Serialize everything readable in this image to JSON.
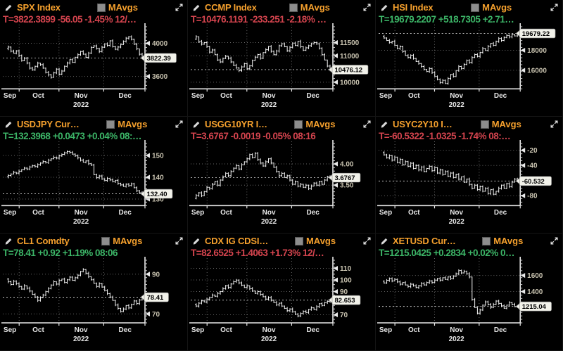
{
  "shared": {
    "mavgs_label": "MAvgs",
    "x_months": [
      "Sep",
      "Oct",
      "Nov",
      "Dec"
    ],
    "year": "2022"
  },
  "colors": {
    "positive_green": "#3cb567",
    "negative_red": "#d4444e",
    "title_orange": "#f5a02d",
    "tag_background": "#f2f2ea",
    "axis_white": "#e8e8e8",
    "tick_label_tan": "#c9c3b0",
    "chart_bar_white": "#f4f4f4"
  },
  "panels": [
    {
      "security": "SPX Index",
      "quote_line": "T=3822.3899 -56.05 -1.45% 12/…",
      "quote_color": "negative",
      "last_label": "3822.39",
      "last_value": 3822.39,
      "y_range": [
        3450,
        4200
      ],
      "y_ticks": [
        {
          "value": 4000,
          "label": "4000"
        },
        {
          "value": 3600,
          "label": "3600"
        }
      ],
      "chart": {
        "type": "ohlc-bar",
        "closes": [
          3935,
          3955,
          3905,
          3880,
          3908,
          3852,
          3790,
          3820,
          3762,
          3700,
          3678,
          3722,
          3760,
          3742,
          3700,
          3648,
          3618,
          3588,
          3642,
          3688,
          3628,
          3665,
          3722,
          3762,
          3802,
          3770,
          3832,
          3862,
          3900,
          3868,
          3830,
          3882,
          3950,
          3968,
          3938,
          3900,
          3952,
          3992,
          3975,
          4030,
          3958,
          3928,
          3955,
          3985,
          4022,
          4062,
          4078,
          4048,
          3988,
          3932,
          3868,
          3822
        ]
      }
    },
    {
      "security": "CCMP Index",
      "quote_line": "T=10476.1191 -233.251 -2.18% …",
      "quote_color": "negative",
      "last_label": "10476.12",
      "last_value": 10476.12,
      "y_range": [
        9750,
        12100
      ],
      "y_ticks": [
        {
          "value": 11500,
          "label": "11500"
        },
        {
          "value": 11000,
          "label": "11000"
        },
        {
          "value": 10000,
          "label": "10000"
        }
      ],
      "chart": {
        "type": "ohlc-bar",
        "closes": [
          11630,
          11720,
          11540,
          11440,
          11500,
          11340,
          11140,
          11220,
          11040,
          10840,
          10770,
          10900,
          10980,
          10910,
          10770,
          10640,
          10540,
          10440,
          10580,
          10700,
          10510,
          10620,
          10820,
          10950,
          11050,
          10910,
          11120,
          11230,
          11350,
          11170,
          11040,
          11180,
          11380,
          11450,
          11340,
          11190,
          11320,
          11480,
          11390,
          11550,
          11340,
          11210,
          11300,
          11380,
          11450,
          11500,
          11450,
          11290,
          11040,
          10840,
          10610,
          10476
        ]
      }
    },
    {
      "security": "HSI Index",
      "quote_line": "T=19679.2207 +518.7305 +2.71…",
      "quote_color": "positive",
      "last_label": "19679.22",
      "last_value": 19679.22,
      "y_range": [
        14150,
        20350
      ],
      "y_ticks": [
        {
          "value": 18000,
          "label": "18000"
        },
        {
          "value": 16000,
          "label": "16000"
        }
      ],
      "chart": {
        "type": "ohlc-bar",
        "closes": [
          19380,
          19230,
          18980,
          18780,
          18900,
          18480,
          18180,
          18350,
          17880,
          17480,
          17280,
          17500,
          17180,
          16880,
          16680,
          16380,
          16080,
          15880,
          16180,
          15780,
          15380,
          15080,
          14780,
          15000,
          14680,
          15180,
          15580,
          15380,
          15980,
          16380,
          16180,
          16580,
          16980,
          16780,
          17280,
          17580,
          17380,
          17780,
          18180,
          17980,
          18380,
          18680,
          18480,
          18880,
          19180,
          18980,
          19280,
          19480,
          19330,
          19540,
          19430,
          19679
        ]
      }
    },
    {
      "security": "USDJPY Cur…",
      "quote_line": "T=132.3968 +0.0473 +0.04% 08:…",
      "quote_color": "positive",
      "last_label": "132.40",
      "last_value": 132.4,
      "y_range": [
        127,
        155.5
      ],
      "y_ticks": [
        {
          "value": 150,
          "label": "150"
        },
        {
          "value": 140,
          "label": "140"
        },
        {
          "value": 130,
          "label": "130"
        }
      ],
      "chart": {
        "type": "ohlc-bar",
        "closes": [
          140.2,
          140.8,
          141.5,
          142.3,
          141.9,
          142.8,
          143.5,
          144.2,
          143.8,
          144.7,
          145.3,
          144.9,
          145.8,
          146.5,
          147.2,
          146.8,
          147.8,
          148.5,
          149.2,
          148.8,
          149.8,
          150.5,
          151.2,
          151.8,
          151.4,
          150.6,
          149.8,
          148.9,
          147.8,
          146.9,
          147.5,
          146.2,
          145.6,
          141.2,
          139.8,
          140.6,
          139.2,
          138.5,
          139.5,
          138.8,
          137.9,
          138.6,
          137.2,
          136.5,
          135.8,
          136.8,
          136.2,
          137.0,
          135.2,
          133.8,
          132.9,
          132.4
        ]
      }
    },
    {
      "security": "USGG10YR I…",
      "quote_line": "T=3.6767 -0.0019 -0.05% 08:16",
      "quote_color": "negative",
      "last_label": "3.6767",
      "last_value": 3.6767,
      "y_range": [
        3.02,
        4.48
      ],
      "y_ticks": [
        {
          "value": 4.0,
          "label": "4.00"
        },
        {
          "value": 3.5,
          "label": "3.50"
        }
      ],
      "chart": {
        "type": "ohlc-bar",
        "closes": [
          3.19,
          3.26,
          3.32,
          3.25,
          3.35,
          3.45,
          3.42,
          3.52,
          3.58,
          3.5,
          3.62,
          3.7,
          3.78,
          3.72,
          3.82,
          3.9,
          3.96,
          3.88,
          3.98,
          4.05,
          4.12,
          4.22,
          4.15,
          4.25,
          4.1,
          4.02,
          3.95,
          4.05,
          4.12,
          4.02,
          3.92,
          3.82,
          3.72,
          3.78,
          3.68,
          3.72,
          3.62,
          3.52,
          3.58,
          3.48,
          3.52,
          3.45,
          3.5,
          3.42,
          3.48,
          3.55,
          3.5,
          3.58,
          3.52,
          3.62,
          3.7,
          3.68
        ]
      }
    },
    {
      "security": "USYC2Y10 I…",
      "quote_line": "T=-60.5322 -1.0325 -1.74% 08:…",
      "quote_color": "negative",
      "last_label": "-60.532",
      "last_value": -60.532,
      "y_range": [
        -93,
        -11
      ],
      "y_ticks": [
        {
          "value": -20,
          "label": "-20"
        },
        {
          "value": -40,
          "label": "-40"
        },
        {
          "value": -80,
          "label": "-80"
        }
      ],
      "chart": {
        "type": "ohlc-bar",
        "closes": [
          -23,
          -26,
          -30,
          -27,
          -33,
          -29,
          -36,
          -32,
          -39,
          -35,
          -41,
          -37,
          -44,
          -40,
          -46,
          -42,
          -48,
          -44,
          -41,
          -47,
          -43,
          -50,
          -46,
          -52,
          -48,
          -54,
          -50,
          -56,
          -52,
          -58,
          -55,
          -62,
          -58,
          -65,
          -70,
          -66,
          -72,
          -68,
          -74,
          -70,
          -77,
          -72,
          -78,
          -74,
          -70,
          -66,
          -70,
          -64,
          -68,
          -62,
          -58,
          -60.5
        ]
      }
    },
    {
      "security": "CL1 Comdty",
      "quote_line": "T=78.41 +0.92 +1.19% 08:06",
      "quote_color": "positive",
      "last_label": "78.41",
      "last_value": 78.41,
      "y_range": [
        65.5,
        97
      ],
      "y_ticks": [
        {
          "value": 90,
          "label": "90"
        },
        {
          "value": 70,
          "label": "70"
        }
      ],
      "chart": {
        "type": "ohlc-bar",
        "closes": [
          87.5,
          86.2,
          84.8,
          86.5,
          85.2,
          83.8,
          82.5,
          84.2,
          83.0,
          81.5,
          79.8,
          78.5,
          76.8,
          78.2,
          79.5,
          81.2,
          82.8,
          84.5,
          86.2,
          85.0,
          86.8,
          87.5,
          85.8,
          87.2,
          88.5,
          86.9,
          88.2,
          89.5,
          91.2,
          92.3,
          90.5,
          88.8,
          87.2,
          85.5,
          83.8,
          85.2,
          83.5,
          81.8,
          80.2,
          78.5,
          76.8,
          74.5,
          72.8,
          71.2,
          72.5,
          74.2,
          73.0,
          74.8,
          76.5,
          75.2,
          77.0,
          78.4
        ]
      }
    },
    {
      "security": "CDX IG CDSI…",
      "quote_line": "T=82.6525 +1.4063 +1.73% 12/…",
      "quote_color": "negative",
      "last_label": "82.653",
      "last_value": 82.653,
      "y_range": [
        63,
        117
      ],
      "y_ticks": [
        {
          "value": 110,
          "label": "110"
        },
        {
          "value": 100,
          "label": "100"
        },
        {
          "value": 90,
          "label": "90"
        },
        {
          "value": 70,
          "label": "70"
        }
      ],
      "chart": {
        "type": "ohlc-bar",
        "closes": [
          79,
          77.5,
          80,
          82,
          81,
          83.5,
          85,
          87,
          86,
          88.5,
          90,
          92.5,
          95,
          93.5,
          96.5,
          98.5,
          99.8,
          97.5,
          95.5,
          93.5,
          95,
          92.5,
          90.5,
          88.5,
          90,
          87.5,
          85.5,
          83.5,
          85,
          82.5,
          80.5,
          78.5,
          80,
          77.5,
          75.5,
          73.5,
          75,
          72.5,
          70.5,
          69,
          71,
          73,
          72,
          74.5,
          76,
          74.5,
          77,
          79.5,
          78,
          80.5,
          81.5,
          82.65
        ]
      }
    },
    {
      "security": "XETUSD Cur…",
      "quote_line": "T=1215.0425 +0.2834 +0.02% 0…",
      "quote_color": "positive",
      "last_label": "1215.04",
      "last_value": 1215.04,
      "y_range": [
        1010,
        1790
      ],
      "y_ticks": [
        {
          "value": 1600,
          "label": "1600"
        },
        {
          "value": 1400,
          "label": "1400"
        }
      ],
      "chart": {
        "type": "ohlc-bar",
        "closes": [
          1530,
          1508,
          1540,
          1562,
          1532,
          1552,
          1520,
          1492,
          1512,
          1482,
          1462,
          1492,
          1472,
          1450,
          1472,
          1502,
          1482,
          1512,
          1532,
          1512,
          1542,
          1562,
          1542,
          1572,
          1552,
          1582,
          1562,
          1592,
          1622,
          1662,
          1632,
          1652,
          1622,
          1582,
          1300,
          1200,
          1130,
          1170,
          1230,
          1272,
          1242,
          1202,
          1242,
          1282,
          1252,
          1222,
          1192,
          1232,
          1262,
          1242,
          1212,
          1215
        ]
      }
    }
  ]
}
